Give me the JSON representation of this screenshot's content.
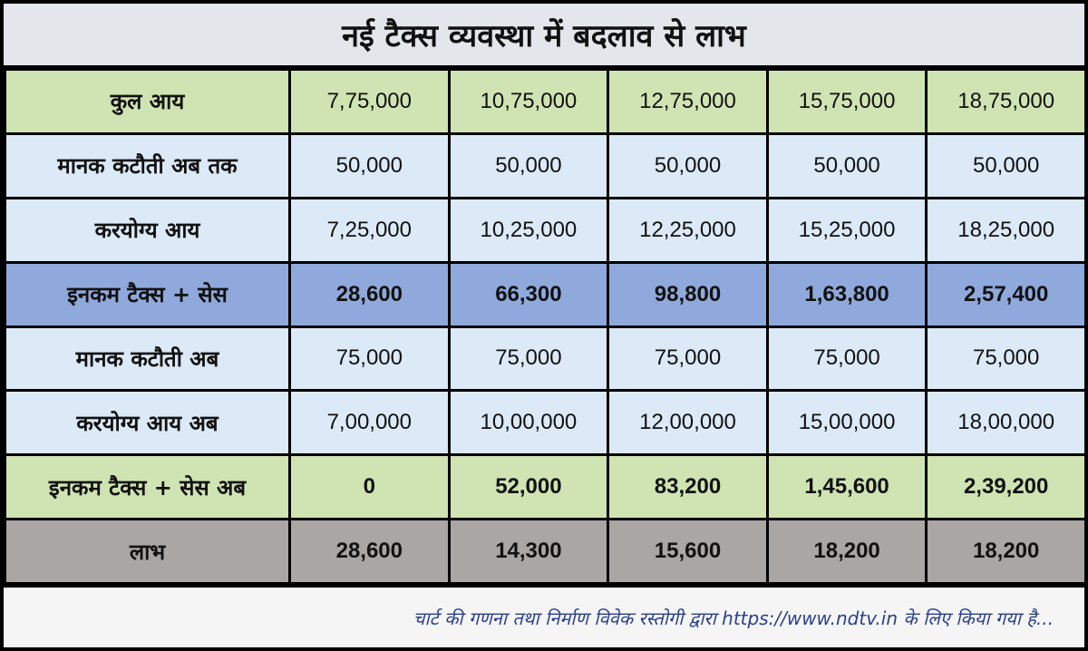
{
  "title": "नई टैक्स व्यवस्था में बदलाव से लाभ",
  "rows": [
    {
      "label": "कुल आय",
      "values": [
        "7,75,000",
        "10,75,000",
        "12,75,000",
        "15,75,000",
        "18,75,000"
      ]
    },
    {
      "label": "मानक कटौती अब तक",
      "values": [
        "50,000",
        "50,000",
        "50,000",
        "50,000",
        "50,000"
      ]
    },
    {
      "label": "करयोग्य आय",
      "values": [
        "7,25,000",
        "10,25,000",
        "12,25,000",
        "15,25,000",
        "18,25,000"
      ]
    },
    {
      "label": "इनकम टैक्स + सेस",
      "values": [
        "28,600",
        "66,300",
        "98,800",
        "1,63,800",
        "2,57,400"
      ]
    },
    {
      "label": "मानक कटौती अब",
      "values": [
        "75,000",
        "75,000",
        "75,000",
        "75,000",
        "75,000"
      ]
    },
    {
      "label": "करयोग्य आय अब",
      "values": [
        "7,00,000",
        "10,00,000",
        "12,00,000",
        "15,00,000",
        "18,00,000"
      ]
    },
    {
      "label": "इनकम टैक्स + सेस अब",
      "values": [
        "0",
        "52,000",
        "83,200",
        "1,45,600",
        "2,39,200"
      ]
    },
    {
      "label": "लाभ",
      "values": [
        "28,600",
        "14,300",
        "15,600",
        "18,200",
        "18,200"
      ]
    }
  ],
  "footer": "चार्ट की गणना तथा निर्माण विवेक रस्तोगी द्वारा https://www.ndtv.in के लिए किया गया है..."
}
